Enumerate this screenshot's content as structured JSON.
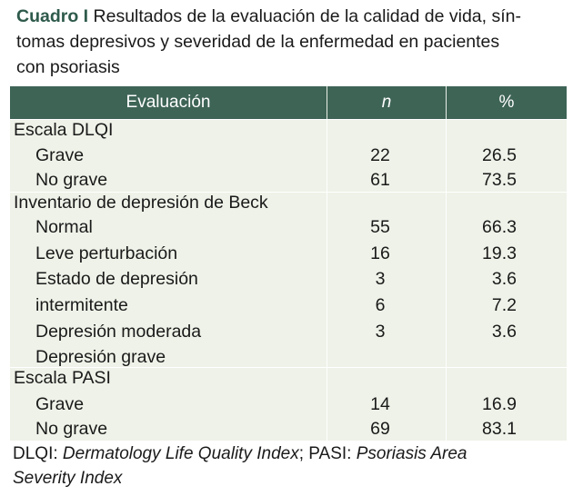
{
  "caption": {
    "label": "Cuadro I",
    "line1": "Resultados de la evaluación de la calidad de vida, sín-",
    "line2": "tomas depresivos y severidad de la enfermedad en pacientes",
    "line3": "con psoriasis"
  },
  "table": {
    "headers": [
      "Evaluación",
      "n",
      "%"
    ],
    "groups": [
      {
        "title": "Escala DLQI",
        "rows": [
          {
            "label": "Grave",
            "n": "22",
            "pct": "26.5"
          },
          {
            "label": "No grave",
            "n": "61",
            "pct": "73.5"
          }
        ]
      },
      {
        "title": "Inventario de depresión de Beck",
        "rows": [
          {
            "label": "Normal",
            "n": "55",
            "pct": "66.3"
          },
          {
            "label": "Leve perturbación",
            "n": "16",
            "pct": "19.3"
          },
          {
            "label": "Estado de depresión",
            "n": "3",
            "pct": "3.6"
          },
          {
            "label": "intermitente",
            "n": "6",
            "pct": "7.2"
          },
          {
            "label": "Depresión moderada",
            "n": "3",
            "pct": "3.6"
          },
          {
            "label": "Depresión grave",
            "n": "",
            "pct": ""
          }
        ]
      },
      {
        "title": "Escala PASI",
        "rows": [
          {
            "label": "Grave",
            "n": "14",
            "pct": "16.9"
          },
          {
            "label": "No grave",
            "n": "69",
            "pct": "83.1"
          }
        ]
      }
    ]
  },
  "footnote": {
    "abbr1": "DLQI:",
    "def1": "Dermatology Life Quality Index",
    "sep": ";",
    "abbr2": "PASI:",
    "def2a": "Psoriasis Area",
    "def2b": "Severity Index"
  }
}
